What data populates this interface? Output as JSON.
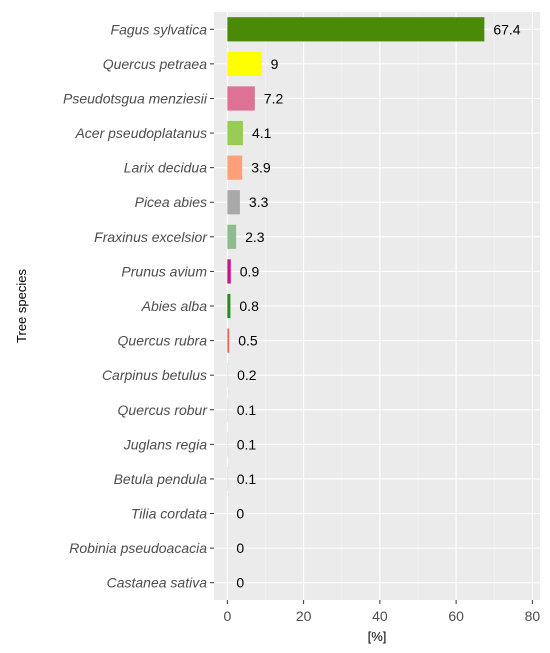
{
  "chart_data": {
    "type": "bar",
    "orientation": "horizontal",
    "xlabel": "[%]",
    "ylabel": "Tree species",
    "xlim": [
      -3.5,
      82
    ],
    "xticks": [
      0,
      20,
      40,
      60,
      80
    ],
    "grid": true,
    "legend": "none",
    "categories": [
      "Fagus sylvatica",
      "Quercus petraea",
      "Pseudotsgua menziesii",
      "Acer pseudoplatanus",
      "Larix decidua",
      "Picea abies",
      "Fraxinus excelsior",
      "Prunus avium",
      "Abies alba",
      "Quercus rubra",
      "Carpinus betulus",
      "Quercus robur",
      "Juglans regia",
      "Betula pendula",
      "Tilia cordata",
      "Robinia pseudoacacia",
      "Castanea sativa"
    ],
    "values": [
      67.4,
      9,
      7.2,
      4.1,
      3.9,
      3.3,
      2.3,
      0.9,
      0.8,
      0.5,
      0.2,
      0.1,
      0.1,
      0.1,
      0,
      0,
      0
    ],
    "value_labels": [
      "67.4",
      "9",
      "7.2",
      "4.1",
      "3.9",
      "3.3",
      "2.3",
      "0.9",
      "0.8",
      "0.5",
      "0.2",
      "0.1",
      "0.1",
      "0.1",
      "0",
      "0",
      "0"
    ],
    "colors": [
      "#4a8a08",
      "#ffff00",
      "#de7294",
      "#99cc55",
      "#ffa07a",
      "#a9a9a9",
      "#8fbc8f",
      "#c71585",
      "#228b22",
      "#e9694f",
      "#d8d8d8",
      "#d8d8d8",
      "#d8d8d8",
      "#d8d8d8",
      "#d8d8d8",
      "#d8d8d8",
      "#d8d8d8"
    ]
  },
  "colors": {
    "panel_background": "#ebebeb",
    "grid_major": "#ffffff",
    "grid_minor": "#f5f5f5"
  }
}
